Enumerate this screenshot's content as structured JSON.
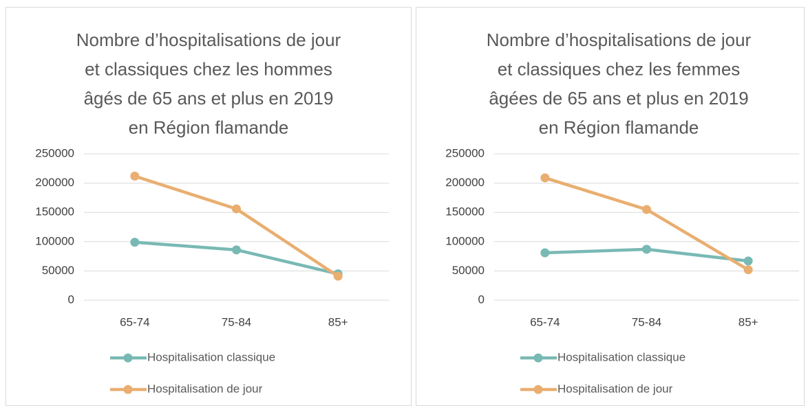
{
  "chart_data": [
    {
      "type": "line",
      "title": [
        "Nombre d’hospitalisations de jour",
        "et classiques chez les hommes",
        "âgés de 65 ans et plus en 2019",
        "en Région flamande"
      ],
      "categories": [
        "65-74",
        "75-84",
        "85+"
      ],
      "series": [
        {
          "name": "Hospitalisation classique",
          "color": "#79b9b4",
          "values": [
            99000,
            86000,
            45000
          ]
        },
        {
          "name": "Hospitalisation de jour",
          "color": "#e9ae70",
          "values": [
            212000,
            156000,
            41000
          ]
        }
      ],
      "ylim": [
        0,
        250000
      ],
      "yticks": [
        0,
        50000,
        100000,
        150000,
        200000,
        250000
      ],
      "grid": true,
      "legend": "bottom"
    },
    {
      "type": "line",
      "title": [
        "Nombre d’hospitalisations de jour",
        "et classiques chez les femmes",
        "âgées de 65 ans et plus en 2019",
        "en Région flamande"
      ],
      "categories": [
        "65-74",
        "75-84",
        "85+"
      ],
      "series": [
        {
          "name": "Hospitalisation classique",
          "color": "#79b9b4",
          "values": [
            81000,
            87000,
            67000
          ]
        },
        {
          "name": "Hospitalisation de jour",
          "color": "#e9ae70",
          "values": [
            209000,
            155000,
            52000
          ]
        }
      ],
      "ylim": [
        0,
        250000
      ],
      "yticks": [
        0,
        50000,
        100000,
        150000,
        200000,
        250000
      ],
      "grid": true,
      "legend": "bottom"
    }
  ]
}
